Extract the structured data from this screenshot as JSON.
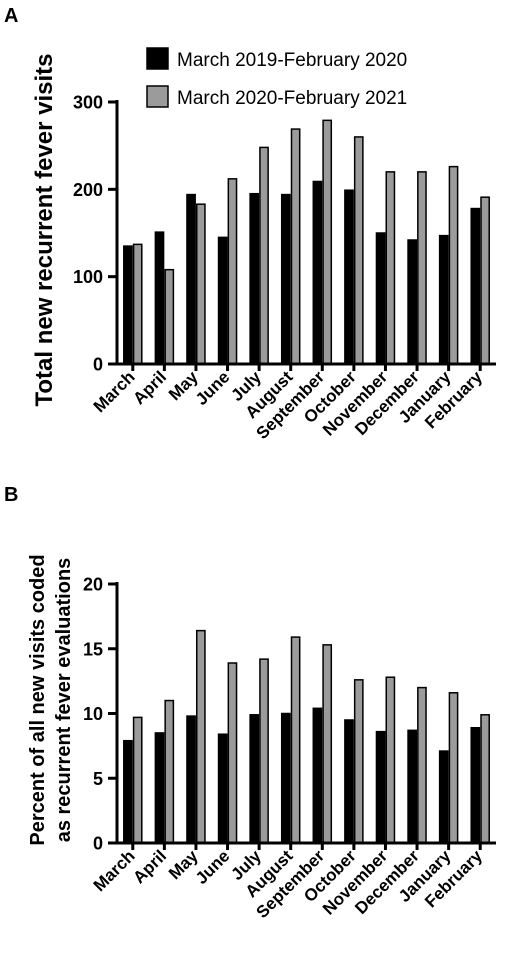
{
  "colors": {
    "series_2019": "#000000",
    "series_2020": "#9b9b9b",
    "outline": "#000000"
  },
  "chart_data": [
    {
      "panel": "A",
      "type": "bar",
      "ylabel": "Total new recurrent fever visits",
      "xlabel": "",
      "ylim": [
        0,
        300
      ],
      "yticks": [
        0,
        100,
        200,
        300
      ],
      "legend": "top-right",
      "grid": false,
      "categories": [
        "March",
        "April",
        "May",
        "June",
        "July",
        "August",
        "September",
        "October",
        "November",
        "December",
        "January",
        "February"
      ],
      "series": [
        {
          "name": "March 2019-February 2020",
          "values": [
            135,
            151,
            194,
            145,
            195,
            194,
            209,
            199,
            150,
            142,
            147,
            178
          ]
        },
        {
          "name": "March 2020-February 2021",
          "values": [
            137,
            108,
            183,
            212,
            248,
            269,
            279,
            260,
            220,
            220,
            226,
            191
          ]
        }
      ]
    },
    {
      "panel": "B",
      "type": "bar",
      "ylabel": "Percent of all new visits coded as recurrent fever evaluations",
      "ylabel_lines": [
        "Percent of all new visits coded",
        "as recurrent fever evaluations"
      ],
      "xlabel": "",
      "ylim": [
        0,
        20
      ],
      "yticks": [
        0,
        5,
        10,
        15,
        20
      ],
      "grid": false,
      "categories": [
        "March",
        "April",
        "May",
        "June",
        "July",
        "August",
        "September",
        "October",
        "November",
        "December",
        "January",
        "February"
      ],
      "series": [
        {
          "name": "March 2019-February 2020",
          "values": [
            7.9,
            8.5,
            9.8,
            8.4,
            9.9,
            10.0,
            10.4,
            9.5,
            8.6,
            8.7,
            7.1,
            8.9
          ]
        },
        {
          "name": "March 2020-February 2021",
          "values": [
            9.7,
            11.0,
            16.4,
            13.9,
            14.2,
            15.9,
            15.3,
            12.6,
            12.8,
            12.0,
            11.6,
            9.9
          ]
        }
      ]
    }
  ]
}
